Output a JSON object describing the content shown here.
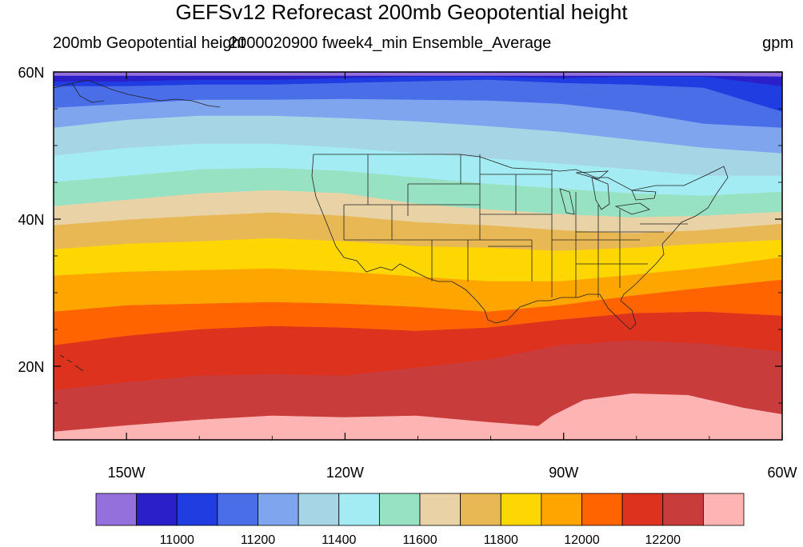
{
  "title": "GEFSv12 Reforecast 200mb Geopotential height",
  "subtitle_left": "200mb Geopotential height",
  "subtitle_center": "2000020900 fweek4_min Ensemble_Average",
  "units": "gpm",
  "map": {
    "lon_range": [
      -160,
      -60
    ],
    "lat_range": [
      10,
      60
    ],
    "lon_ticks": [
      {
        "lon": -150,
        "label": "150W"
      },
      {
        "lon": -120,
        "label": "120W"
      },
      {
        "lon": -90,
        "label": "90W"
      },
      {
        "lon": -60,
        "label": "60W"
      }
    ],
    "lat_ticks": [
      {
        "lat": 60,
        "label": "60N"
      },
      {
        "lat": 40,
        "label": "40N"
      },
      {
        "lat": 20,
        "label": "20N"
      }
    ],
    "contour_levels": [
      10900,
      11000,
      11100,
      11200,
      11300,
      11400,
      11500,
      11600,
      11700,
      11800,
      11900,
      12000,
      12100,
      12200,
      12300
    ],
    "colors": [
      "#9370db",
      "#2a1fc8",
      "#1f3de0",
      "#4a6ee8",
      "#7ea5ee",
      "#a6d6e6",
      "#a4ecf4",
      "#98e2c4",
      "#e8d2a6",
      "#e8b854",
      "#fed601",
      "#ffa500",
      "#ff6400",
      "#dc321e",
      "#c83c3c",
      "#ffb4b4"
    ]
  },
  "colorbar": {
    "labels": [
      "11000",
      "11200",
      "11400",
      "11600",
      "11800",
      "12000",
      "12200"
    ]
  }
}
